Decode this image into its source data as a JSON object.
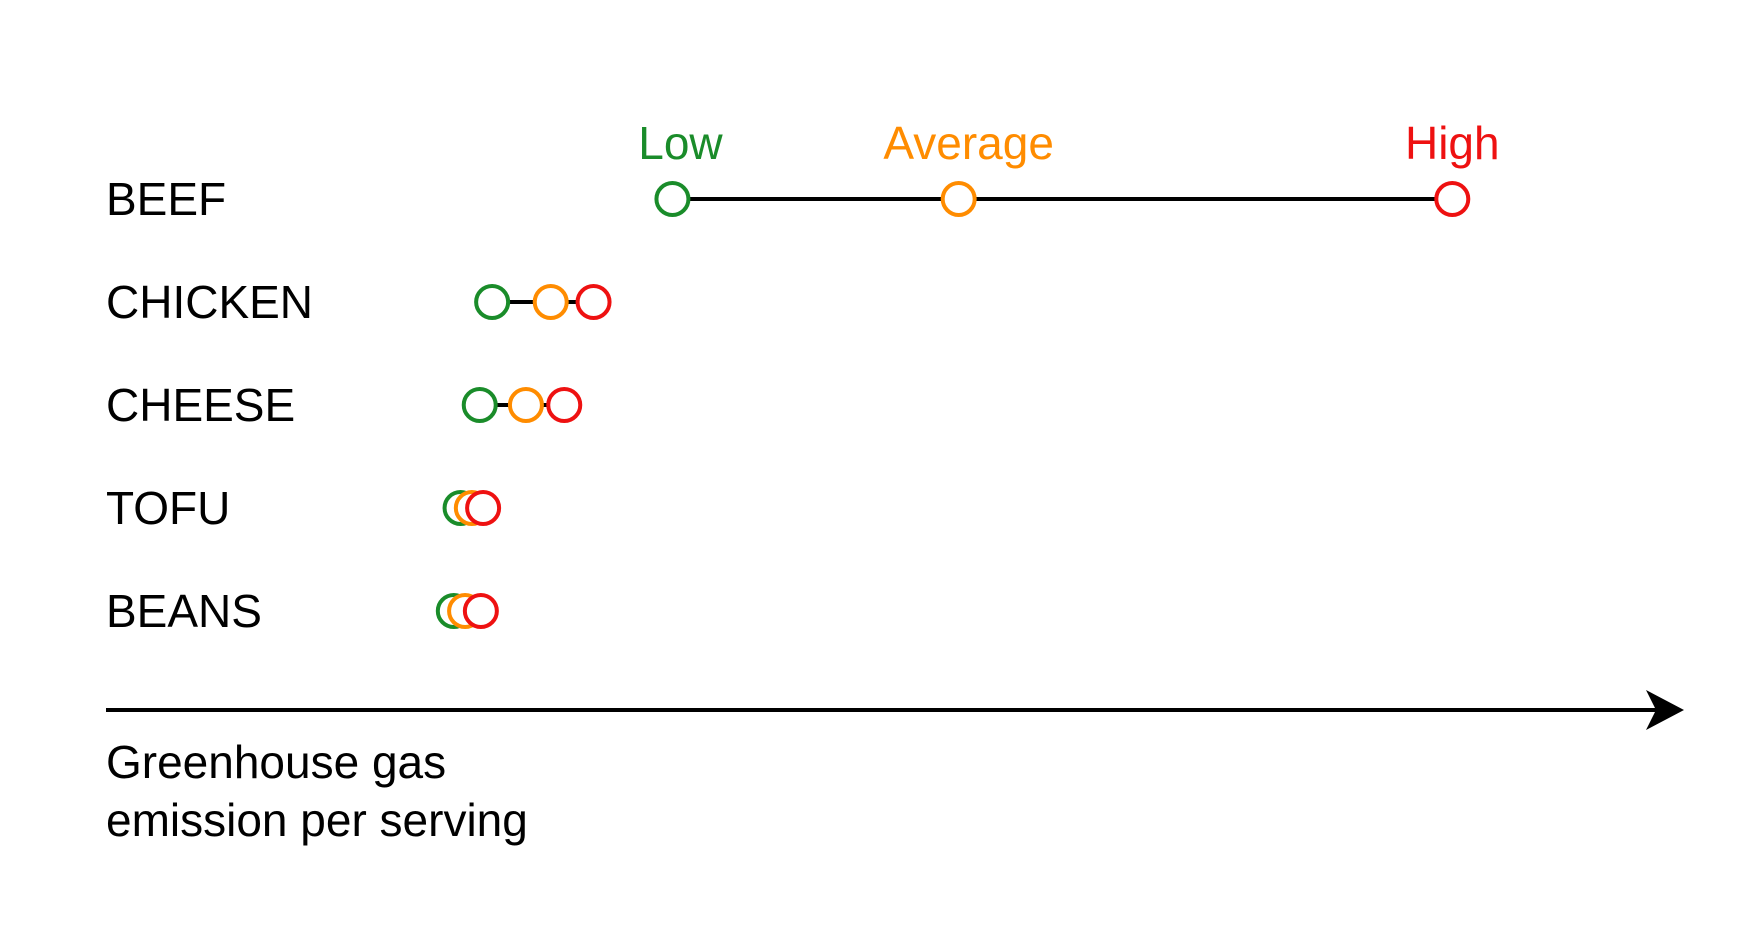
{
  "chart_data": {
    "type": "dumbbell",
    "categories": [
      "BEEF",
      "CHICKEN",
      "CHEESE",
      "TOFU",
      "BEANS"
    ],
    "series": [
      {
        "name": "Low",
        "color": "#1a8c2a",
        "values": [
          10.0,
          2.0,
          1.45,
          0.6,
          0.3
        ]
      },
      {
        "name": "Average",
        "color": "#ff8c00",
        "values": [
          22.7,
          4.6,
          3.5,
          1.1,
          0.8
        ]
      },
      {
        "name": "High",
        "color": "#ee1111",
        "values": [
          44.6,
          6.5,
          5.2,
          1.6,
          1.5
        ]
      }
    ],
    "xlabel_lines": [
      "Greenhouse gas",
      "emission per serving"
    ],
    "xlim": [
      -1.2,
      50
    ],
    "axis": {
      "arrow": true,
      "ticks": false
    },
    "legend": {
      "placement": "top, aligned above the BEEF markers"
    },
    "grid": false
  }
}
